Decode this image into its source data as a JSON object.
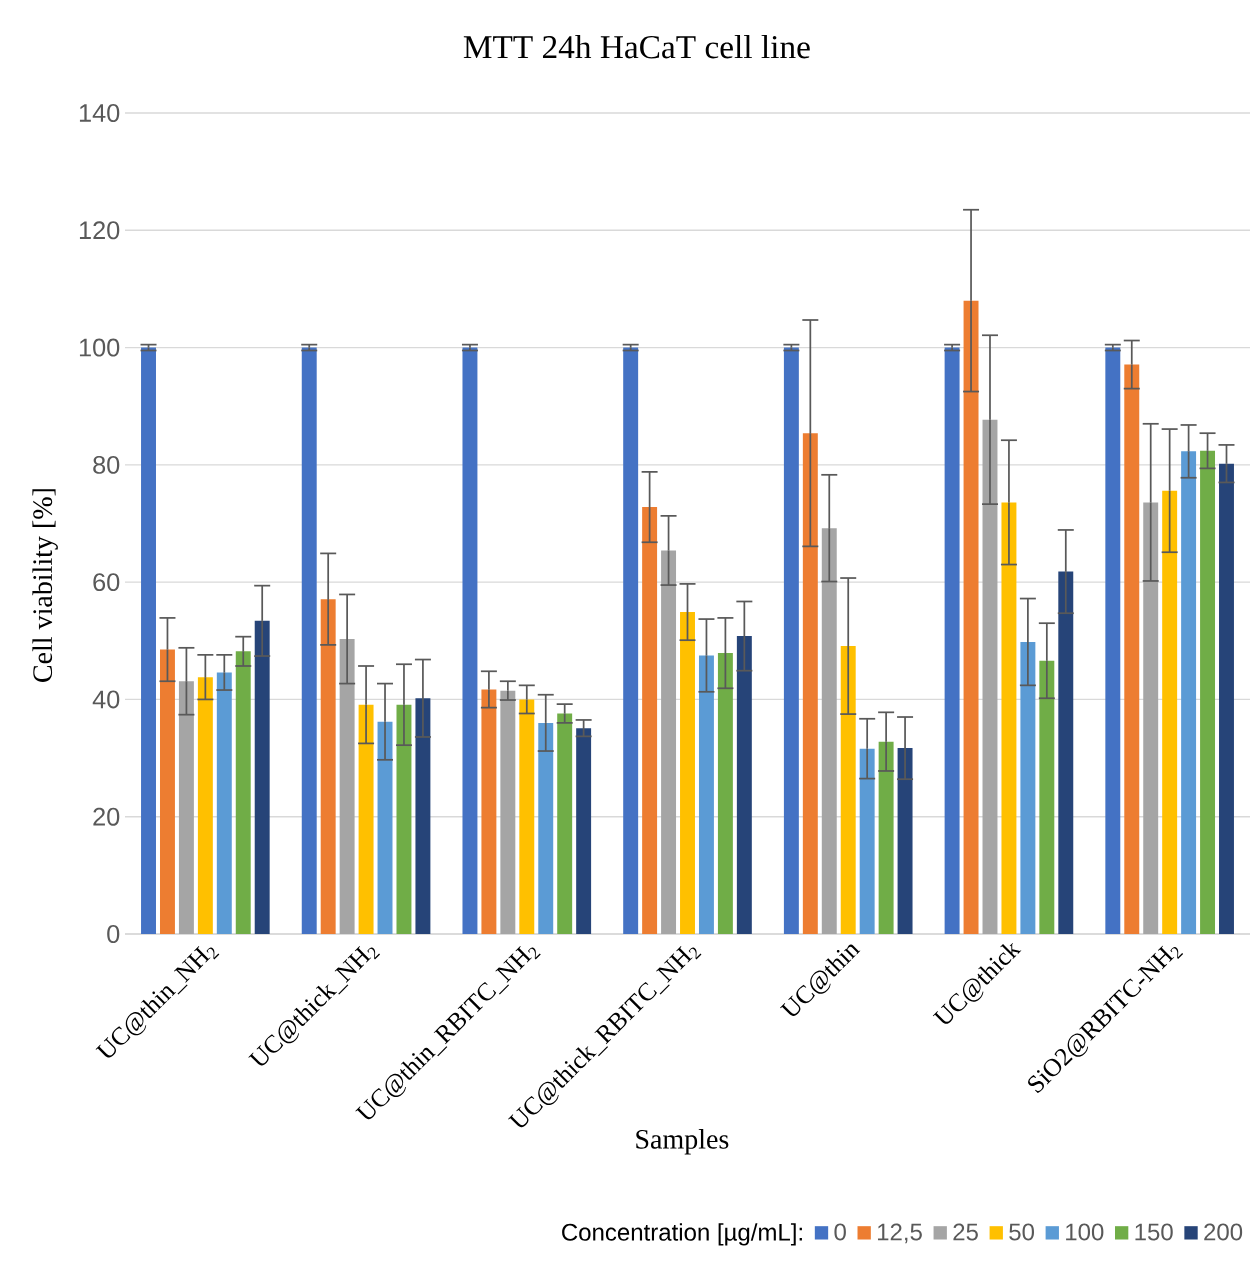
{
  "chart_data": {
    "type": "bar",
    "title": "MTT 24h HaCaT cell line",
    "xlabel": "Samples",
    "ylabel": "Cell viability [%]",
    "legend_title": "Concentration [µg/mL]:",
    "categories": [
      "UC@thin_NH$_{2}$",
      "UC@thick_NH$_{2}$",
      "UC@thin_RBITC_NH$_{2}$",
      "UC@thick_RBITC_NH$_{2}$",
      "UC@thin",
      "UC@thick",
      "SiO2@RBITC-NH$_{2}$"
    ],
    "series": [
      {
        "name": "0",
        "color": "#4472c4",
        "values": [
          100,
          100,
          100,
          100,
          100,
          100,
          100
        ],
        "errors": [
          0.5,
          0.5,
          0.5,
          0.5,
          0.5,
          0.5,
          0.5
        ]
      },
      {
        "name": "12,5",
        "color": "#ed7d31",
        "values": [
          48.5,
          57.1,
          41.7,
          72.8,
          85.4,
          108.0,
          97.1
        ],
        "errors": [
          5.4,
          7.8,
          3.1,
          6.0,
          19.3,
          15.5,
          4.1
        ]
      },
      {
        "name": "25",
        "color": "#a5a5a5",
        "values": [
          43.1,
          50.3,
          41.5,
          65.4,
          69.2,
          87.7,
          73.6
        ],
        "errors": [
          5.7,
          7.6,
          1.6,
          5.9,
          9.1,
          14.4,
          13.4
        ]
      },
      {
        "name": "50",
        "color": "#ffc000",
        "values": [
          43.8,
          39.1,
          40.0,
          54.9,
          49.1,
          73.6,
          75.6
        ],
        "errors": [
          3.8,
          6.6,
          2.4,
          4.8,
          11.6,
          10.6,
          10.5
        ]
      },
      {
        "name": "100",
        "color": "#5b9bd5",
        "values": [
          44.6,
          36.2,
          36.0,
          47.5,
          31.6,
          49.8,
          82.3
        ],
        "errors": [
          3.0,
          6.5,
          4.8,
          6.2,
          5.1,
          7.4,
          4.5
        ]
      },
      {
        "name": "150",
        "color": "#70ad47",
        "values": [
          48.2,
          39.1,
          37.6,
          47.9,
          32.8,
          46.6,
          82.4
        ],
        "errors": [
          2.5,
          6.9,
          1.6,
          6.0,
          5.0,
          6.4,
          3.0
        ]
      },
      {
        "name": "200",
        "color": "#264478",
        "values": [
          53.4,
          40.2,
          35.1,
          50.8,
          31.7,
          61.8,
          80.2
        ],
        "errors": [
          6.0,
          6.6,
          1.4,
          5.9,
          5.3,
          7.1,
          3.2
        ]
      }
    ],
    "ylim": [
      0,
      140
    ],
    "yticks": [
      0,
      20,
      40,
      60,
      80,
      100,
      120,
      140
    ],
    "grid": "y",
    "legend": "bottom"
  }
}
